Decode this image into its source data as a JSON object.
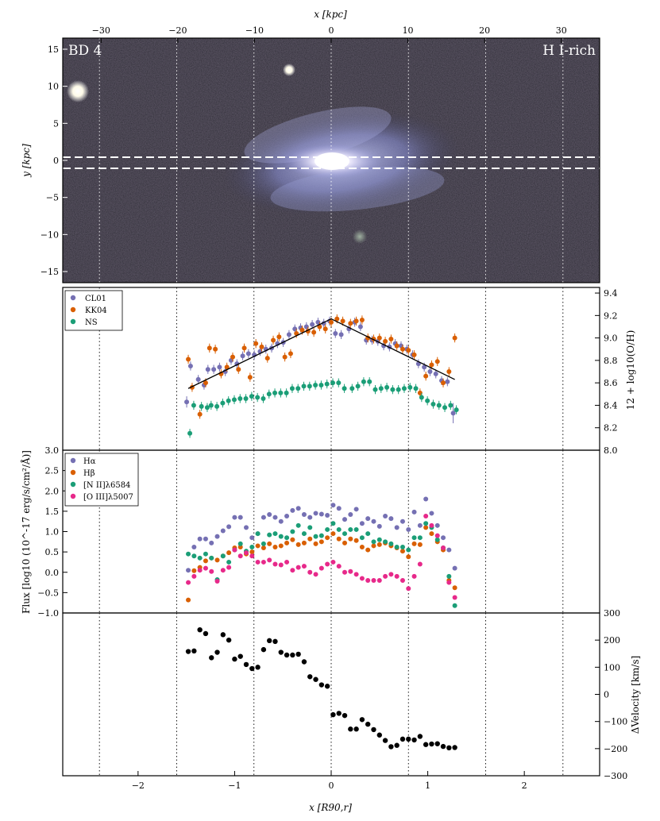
{
  "figure": {
    "top_axis_label": "x [kpc]",
    "bottom_axis_label": "x [R90,r]",
    "colors": {
      "purple": "#7570b3",
      "orange": "#d95f02",
      "green": "#1b9e77",
      "magenta": "#e7298a",
      "black": "#000000"
    }
  },
  "chart_data": [
    {
      "type": "heatmap",
      "panel": "image",
      "title_left": "BD 4",
      "title_right": "H I-rich",
      "xlabel": "x [kpc]",
      "ylabel": "y [kpc]",
      "xlim_top": [
        -35,
        35
      ],
      "ylim": [
        -16.5,
        16.5
      ],
      "top_ticks": [
        -30,
        -20,
        -10,
        0,
        10,
        20,
        30
      ],
      "y_ticks": [
        -15,
        -10,
        -5,
        0,
        5,
        10,
        15
      ],
      "slit_y": [
        0.8,
        -0.8
      ]
    },
    {
      "type": "scatter",
      "panel": "metallicity",
      "ylabel": "12 + log10(O/H)",
      "ylim": [
        8.0,
        9.45
      ],
      "y_ticks": [
        8.0,
        8.2,
        8.4,
        8.6,
        8.8,
        9.0,
        9.2,
        9.4
      ],
      "legend": [
        "CL01",
        "KK04",
        "NS"
      ],
      "legend_position": "upper-left",
      "fit_line": {
        "x": [
          -1.48,
          0,
          1.28
        ],
        "y": [
          8.55,
          9.17,
          8.63
        ]
      },
      "series": [
        {
          "name": "CL01",
          "x": [
            -1.48,
            -1.44,
            -1.36,
            -1.3,
            -1.26,
            -1.2,
            -1.14,
            -1.08,
            -1.02,
            -0.96,
            -0.9,
            -0.84,
            -0.78,
            -0.72,
            -0.66,
            -0.6,
            -0.54,
            -0.48,
            -0.42,
            -0.36,
            -0.3,
            -0.24,
            -0.18,
            -0.12,
            -0.06,
            0.0,
            0.06,
            0.12,
            0.2,
            0.26,
            0.32,
            0.38,
            0.44,
            0.5,
            0.56,
            0.62,
            0.68,
            0.74,
            0.8,
            0.86,
            0.92,
            0.98,
            1.04,
            1.1,
            1.16,
            1.22,
            1.28
          ],
          "y": [
            8.43,
            8.75,
            8.63,
            8.58,
            8.72,
            8.72,
            8.74,
            8.7,
            8.8,
            8.77,
            8.84,
            8.86,
            8.85,
            8.88,
            8.9,
            8.91,
            8.95,
            8.96,
            9.03,
            9.08,
            9.09,
            9.1,
            9.12,
            9.14,
            9.13,
            9.15,
            9.04,
            9.03,
            9.08,
            9.14,
            9.1,
            8.98,
            8.98,
            8.97,
            8.93,
            8.92,
            8.95,
            8.93,
            8.9,
            8.85,
            8.77,
            8.74,
            8.7,
            8.68,
            8.62,
            8.61,
            8.33
          ],
          "yerr": [
            0.05,
            0.04,
            0.04,
            0.04,
            0.04,
            0.04,
            0.04,
            0.04,
            0.04,
            0.04,
            0.04,
            0.04,
            0.04,
            0.04,
            0.04,
            0.04,
            0.04,
            0.04,
            0.04,
            0.04,
            0.04,
            0.04,
            0.04,
            0.04,
            0.04,
            0.04,
            0.04,
            0.04,
            0.04,
            0.04,
            0.04,
            0.04,
            0.04,
            0.04,
            0.04,
            0.04,
            0.04,
            0.04,
            0.04,
            0.04,
            0.04,
            0.04,
            0.04,
            0.04,
            0.04,
            0.04,
            0.09
          ]
        },
        {
          "name": "KK04",
          "x": [
            -1.48,
            -1.44,
            -1.36,
            -1.3,
            -1.26,
            -1.2,
            -1.14,
            -1.08,
            -1.02,
            -0.96,
            -0.9,
            -0.84,
            -0.78,
            -0.72,
            -0.66,
            -0.6,
            -0.54,
            -0.48,
            -0.42,
            -0.36,
            -0.3,
            -0.24,
            -0.18,
            -0.12,
            -0.06,
            0.0,
            0.06,
            0.12,
            0.2,
            0.26,
            0.32,
            0.38,
            0.44,
            0.5,
            0.56,
            0.62,
            0.68,
            0.74,
            0.8,
            0.86,
            0.92,
            0.98,
            1.04,
            1.1,
            1.16,
            1.22,
            1.28
          ],
          "y": [
            8.81,
            8.56,
            8.32,
            8.6,
            8.91,
            8.9,
            8.68,
            8.74,
            8.83,
            8.72,
            8.91,
            8.65,
            8.95,
            8.92,
            8.82,
            8.98,
            9.01,
            8.83,
            8.86,
            9.04,
            9.07,
            9.06,
            9.05,
            9.1,
            9.08,
            9.14,
            9.17,
            9.15,
            9.13,
            9.15,
            9.16,
            9.0,
            8.99,
            9.0,
            8.97,
            8.99,
            8.93,
            8.9,
            8.89,
            8.85,
            8.51,
            8.66,
            8.76,
            8.79,
            8.6,
            8.7,
            9.0
          ]
        },
        {
          "name": "NS",
          "x": [
            -1.48,
            -1.44,
            -1.36,
            -1.3,
            -1.26,
            -1.2,
            -1.14,
            -1.08,
            -1.02,
            -0.96,
            -0.9,
            -0.84,
            -0.78,
            -0.72,
            -0.66,
            -0.6,
            -0.54,
            -0.48,
            -0.42,
            -0.36,
            -0.3,
            -0.24,
            -0.18,
            -0.12,
            -0.06,
            0.0,
            0.06,
            0.12,
            0.2,
            0.26,
            0.32,
            0.38,
            0.44,
            0.5,
            0.56,
            0.62,
            0.68,
            0.74,
            0.8,
            0.86,
            0.92,
            0.98,
            1.04,
            1.1,
            1.16,
            1.22,
            1.28
          ],
          "y": [
            8.15,
            8.4,
            8.39,
            8.38,
            8.4,
            8.39,
            8.42,
            8.44,
            8.45,
            8.46,
            8.46,
            8.48,
            8.47,
            8.46,
            8.5,
            8.51,
            8.51,
            8.51,
            8.55,
            8.55,
            8.57,
            8.57,
            8.58,
            8.58,
            8.59,
            8.6,
            8.6,
            8.55,
            8.55,
            8.57,
            8.61,
            8.61,
            8.54,
            8.55,
            8.56,
            8.54,
            8.54,
            8.55,
            8.56,
            8.55,
            8.47,
            8.44,
            8.41,
            8.4,
            8.38,
            8.4,
            8.36
          ]
        }
      ]
    },
    {
      "type": "scatter",
      "panel": "flux",
      "ylabel": "Flux [log10 (10^-17 erg/s/cm²/Å)]",
      "ylim": [
        -1.0,
        3.0
      ],
      "y_ticks": [
        -1.0,
        -0.5,
        0.0,
        0.5,
        1.0,
        1.5,
        2.0,
        2.5,
        3.0
      ],
      "legend": [
        "Hα",
        "Hβ",
        "[N II]λ6584",
        "[O III]λ5007"
      ],
      "legend_position": "upper-left",
      "series": [
        {
          "name": "Hα",
          "x": [
            -1.48,
            -1.42,
            -1.36,
            -1.3,
            -1.24,
            -1.18,
            -1.12,
            -1.06,
            -1.0,
            -0.94,
            -0.88,
            -0.82,
            -0.76,
            -0.7,
            -0.64,
            -0.58,
            -0.52,
            -0.46,
            -0.4,
            -0.34,
            -0.28,
            -0.22,
            -0.16,
            -0.1,
            -0.04,
            0.02,
            0.08,
            0.14,
            0.2,
            0.26,
            0.32,
            0.38,
            0.44,
            0.5,
            0.56,
            0.62,
            0.68,
            0.74,
            0.8,
            0.86,
            0.92,
            0.98,
            1.04,
            1.1,
            1.16,
            1.22,
            1.28
          ],
          "y": [
            0.05,
            0.62,
            0.82,
            0.82,
            0.72,
            0.88,
            1.02,
            1.12,
            1.35,
            1.35,
            1.1,
            0.85,
            0.95,
            1.35,
            1.42,
            1.35,
            1.25,
            1.38,
            1.52,
            1.57,
            1.42,
            1.35,
            1.45,
            1.43,
            1.4,
            1.65,
            1.57,
            1.3,
            1.42,
            1.55,
            1.2,
            1.32,
            1.25,
            1.13,
            1.38,
            1.32,
            1.1,
            1.25,
            1.05,
            1.48,
            1.15,
            1.8,
            1.45,
            1.15,
            0.85,
            0.55,
            0.1
          ]
        },
        {
          "name": "Hβ",
          "x": [
            -1.48,
            -1.42,
            -1.36,
            -1.3,
            -1.24,
            -1.18,
            -1.12,
            -1.06,
            -1.0,
            -0.94,
            -0.88,
            -0.82,
            -0.76,
            -0.7,
            -0.64,
            -0.58,
            -0.52,
            -0.46,
            -0.4,
            -0.34,
            -0.28,
            -0.22,
            -0.16,
            -0.1,
            -0.04,
            0.02,
            0.08,
            0.14,
            0.2,
            0.26,
            0.32,
            0.38,
            0.44,
            0.5,
            0.56,
            0.62,
            0.68,
            0.74,
            0.8,
            0.86,
            0.92,
            0.98,
            1.04,
            1.1,
            1.16,
            1.22,
            1.28
          ],
          "y": [
            -0.68,
            0.04,
            0.12,
            0.28,
            0.35,
            0.3,
            0.4,
            0.48,
            0.6,
            0.62,
            0.45,
            0.5,
            0.65,
            0.6,
            0.7,
            0.62,
            0.65,
            0.72,
            0.8,
            0.68,
            0.72,
            0.82,
            0.7,
            0.75,
            0.85,
            0.95,
            0.82,
            0.72,
            0.82,
            0.78,
            0.62,
            0.55,
            0.65,
            0.68,
            0.72,
            0.65,
            0.6,
            0.52,
            0.38,
            0.7,
            0.68,
            1.1,
            0.95,
            0.75,
            0.55,
            -0.2,
            -0.38
          ]
        },
        {
          "name": "[N II]λ6584",
          "x": [
            -1.48,
            -1.42,
            -1.36,
            -1.3,
            -1.24,
            -1.18,
            -1.12,
            -1.06,
            -1.0,
            -0.94,
            -0.88,
            -0.82,
            -0.76,
            -0.7,
            -0.64,
            -0.58,
            -0.52,
            -0.46,
            -0.4,
            -0.34,
            -0.28,
            -0.22,
            -0.16,
            -0.1,
            -0.04,
            0.02,
            0.08,
            0.14,
            0.2,
            0.26,
            0.32,
            0.38,
            0.44,
            0.5,
            0.56,
            0.62,
            0.68,
            0.74,
            0.8,
            0.86,
            0.92,
            0.98,
            1.04,
            1.1,
            1.16,
            1.22,
            1.28
          ],
          "y": [
            0.45,
            0.4,
            0.35,
            0.45,
            0.35,
            -0.18,
            0.4,
            0.25,
            0.55,
            0.7,
            0.52,
            0.62,
            0.95,
            0.7,
            0.92,
            0.95,
            0.88,
            0.85,
            1.0,
            1.15,
            0.95,
            1.1,
            0.88,
            0.9,
            1.05,
            1.2,
            1.05,
            0.95,
            1.05,
            1.05,
            0.85,
            0.95,
            0.75,
            0.8,
            0.75,
            0.7,
            0.62,
            0.62,
            0.55,
            0.85,
            0.85,
            1.2,
            1.1,
            0.8,
            0.6,
            -0.1,
            -0.82
          ]
        },
        {
          "name": "[O III]λ5007",
          "x": [
            -1.48,
            -1.42,
            -1.36,
            -1.3,
            -1.24,
            -1.18,
            -1.12,
            -1.06,
            -1.0,
            -0.94,
            -0.88,
            -0.82,
            -0.76,
            -0.7,
            -0.64,
            -0.58,
            -0.52,
            -0.46,
            -0.4,
            -0.34,
            -0.28,
            -0.22,
            -0.16,
            -0.1,
            -0.04,
            0.02,
            0.08,
            0.14,
            0.2,
            0.26,
            0.32,
            0.38,
            0.44,
            0.5,
            0.56,
            0.62,
            0.68,
            0.74,
            0.8,
            0.86,
            0.92,
            0.98,
            1.04,
            1.1,
            1.16,
            1.22,
            1.28
          ],
          "y": [
            -0.25,
            -0.1,
            0.05,
            0.1,
            0.02,
            -0.22,
            0.05,
            0.12,
            0.55,
            0.4,
            0.48,
            0.4,
            0.25,
            0.25,
            0.3,
            0.2,
            0.18,
            0.25,
            0.05,
            0.12,
            0.15,
            0.0,
            -0.05,
            0.1,
            0.2,
            0.25,
            0.15,
            0.0,
            0.02,
            -0.05,
            -0.15,
            -0.2,
            -0.2,
            -0.2,
            -0.1,
            -0.05,
            -0.1,
            -0.2,
            -0.4,
            -0.1,
            0.2,
            1.38,
            1.15,
            0.9,
            0.6,
            -0.25,
            -0.62
          ]
        }
      ]
    },
    {
      "type": "scatter",
      "panel": "velocity",
      "ylabel": "ΔVelocity [km/s]",
      "ylim": [
        -300,
        300
      ],
      "y_ticks": [
        -300,
        -200,
        -100,
        0,
        100,
        200,
        300
      ],
      "x_ticks": [
        -2,
        -1,
        0,
        1,
        2
      ],
      "xlim": [
        -2.78,
        2.78
      ],
      "xlabel": "x [R90,r]",
      "vlines_x": [
        -2.4,
        -1.6,
        -0.8,
        0,
        0.8,
        1.6,
        2.4
      ],
      "series": [
        {
          "name": "",
          "x": [
            -1.48,
            -1.42,
            -1.36,
            -1.3,
            -1.24,
            -1.18,
            -1.12,
            -1.06,
            -1.0,
            -0.94,
            -0.88,
            -0.82,
            -0.76,
            -0.7,
            -0.64,
            -0.58,
            -0.52,
            -0.46,
            -0.4,
            -0.34,
            -0.28,
            -0.22,
            -0.16,
            -0.1,
            -0.04,
            0.02,
            0.08,
            0.14,
            0.2,
            0.26,
            0.32,
            0.38,
            0.44,
            0.5,
            0.56,
            0.62,
            0.68,
            0.74,
            0.8,
            0.86,
            0.92,
            0.98,
            1.04,
            1.1,
            1.16,
            1.22,
            1.28
          ],
          "y": [
            158,
            160,
            238,
            224,
            135,
            155,
            220,
            200,
            130,
            140,
            110,
            95,
            100,
            165,
            198,
            195,
            155,
            145,
            145,
            148,
            120,
            65,
            55,
            35,
            30,
            -75,
            -70,
            -78,
            -128,
            -128,
            -93,
            -110,
            -130,
            -150,
            -170,
            -193,
            -188,
            -165,
            -165,
            -168,
            -155,
            -185,
            -183,
            -182,
            -192,
            -197,
            -196
          ]
        }
      ]
    }
  ]
}
